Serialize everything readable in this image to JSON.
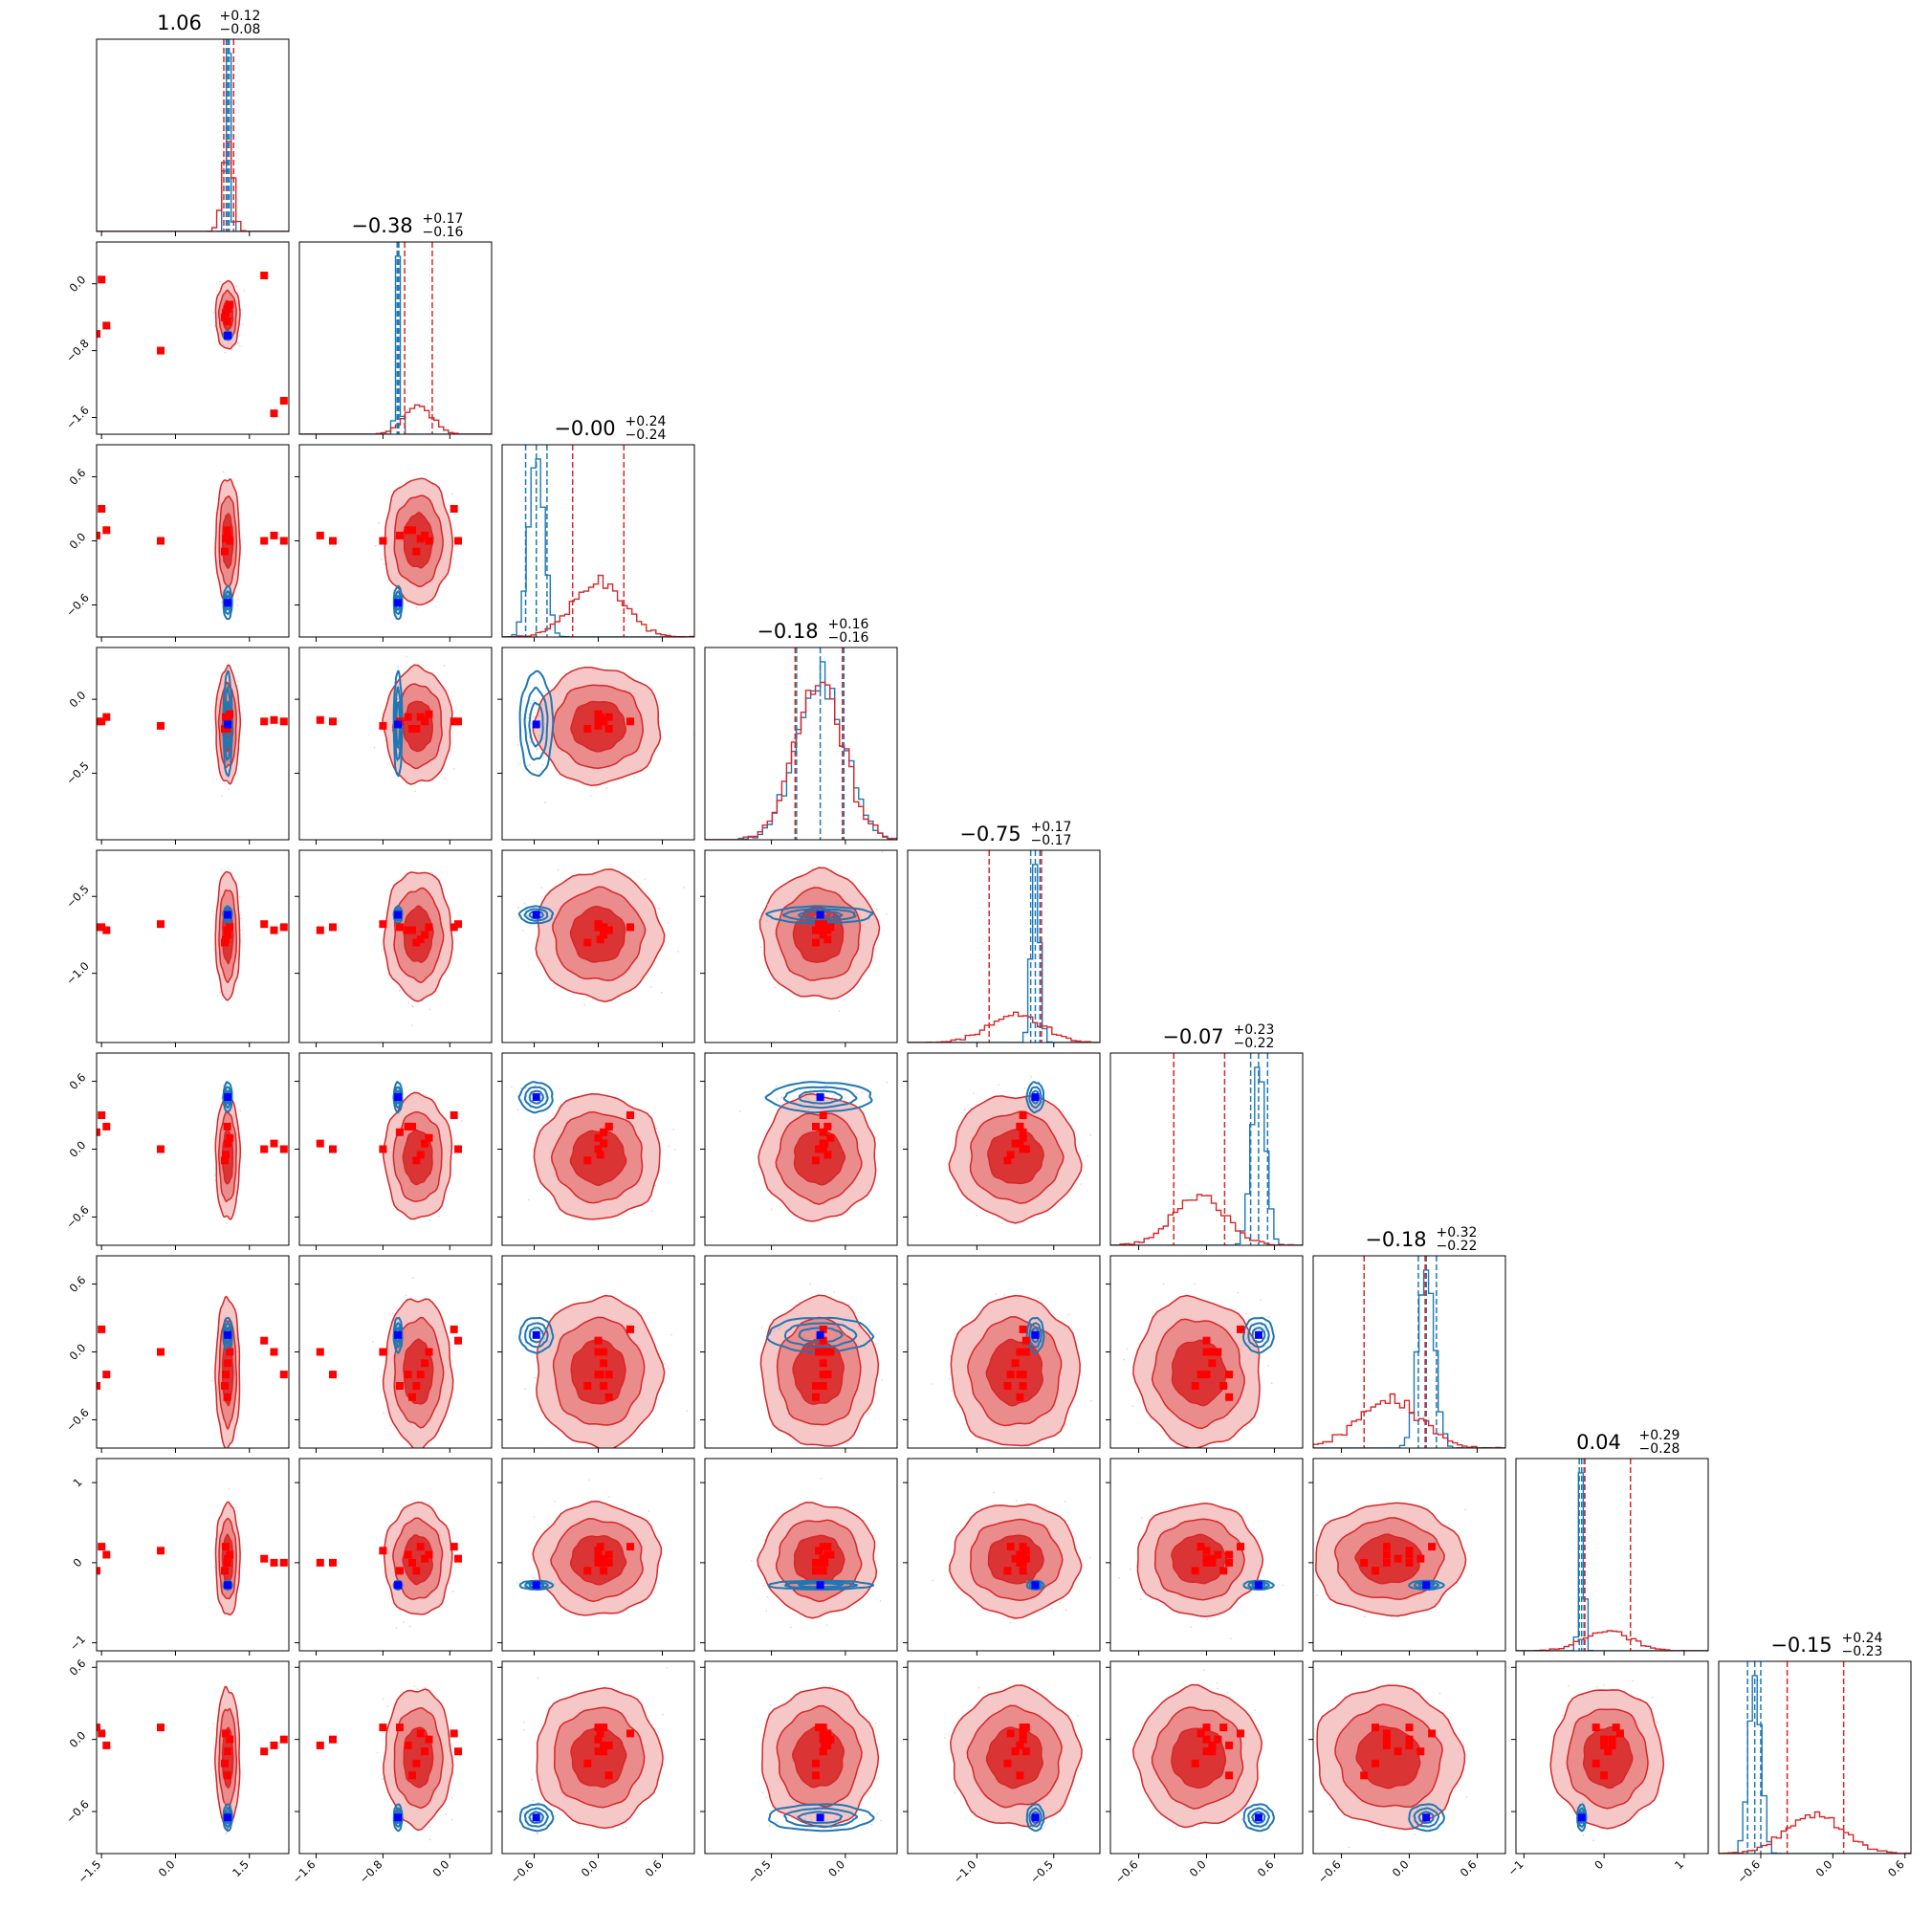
{
  "chart_data": {
    "type": "corner",
    "parameters": 9,
    "titles": [
      {
        "median": "1.06",
        "plus": "+0.12",
        "minus": "−0.08"
      },
      {
        "median": "−0.38",
        "plus": "+0.17",
        "minus": "−0.16"
      },
      {
        "median": "−0.00",
        "plus": "+0.24",
        "minus": "−0.24"
      },
      {
        "median": "−0.18",
        "plus": "+0.16",
        "minus": "−0.16"
      },
      {
        "median": "−0.75",
        "plus": "+0.17",
        "minus": "−0.17"
      },
      {
        "median": "−0.07",
        "plus": "+0.23",
        "minus": "−0.22"
      },
      {
        "median": "−0.18",
        "plus": "+0.32",
        "minus": "−0.22"
      },
      {
        "median": "0.04",
        "plus": "+0.29",
        "minus": "−0.28"
      },
      {
        "median": "−0.15",
        "plus": "+0.24",
        "minus": "−0.23"
      }
    ],
    "ranges": [
      [
        -1.6,
        2.3
      ],
      [
        -1.8,
        0.5
      ],
      [
        -0.9,
        0.9
      ],
      [
        -0.95,
        0.35
      ],
      [
        -1.45,
        -0.2
      ],
      [
        -0.85,
        0.85
      ],
      [
        -0.85,
        0.85
      ],
      [
        -1.1,
        1.3
      ],
      [
        -0.95,
        0.65
      ]
    ],
    "x_ticks": [
      {
        "values": [
          -1.5,
          0.0,
          1.5
        ],
        "labels": [
          "−1.5",
          "0.0",
          "1.5"
        ]
      },
      {
        "values": [
          -1.6,
          -0.8,
          0.0
        ],
        "labels": [
          "−1.6",
          "−0.8",
          "0.0"
        ]
      },
      {
        "values": [
          -0.6,
          0.0,
          0.6
        ],
        "labels": [
          "−0.6",
          "0.0",
          "0.6"
        ]
      },
      {
        "values": [
          -0.5,
          0.0
        ],
        "labels": [
          "−0.5",
          "0.0"
        ]
      },
      {
        "values": [
          -1.0,
          -0.5
        ],
        "labels": [
          "−1.0",
          "−0.5"
        ]
      },
      {
        "values": [
          -0.6,
          0.0,
          0.6
        ],
        "labels": [
          "−0.6",
          "0.0",
          "0.6"
        ]
      },
      {
        "values": [
          -0.6,
          0.0,
          0.6
        ],
        "labels": [
          "−0.6",
          "0.0",
          "0.6"
        ]
      },
      {
        "values": [
          -1,
          0,
          1
        ],
        "labels": [
          "−1",
          "0",
          "1"
        ]
      },
      {
        "values": [
          -0.6,
          0.0,
          0.6
        ],
        "labels": [
          "−0.6",
          "0.0",
          "0.6"
        ]
      }
    ],
    "y_ticks": [
      null,
      {
        "values": [
          -1.6,
          -0.8,
          0.0
        ],
        "labels": [
          "−1.6",
          "−0.8",
          "0.0"
        ]
      },
      {
        "values": [
          -0.6,
          0.0,
          0.6
        ],
        "labels": [
          "−0.6",
          "0.0",
          "0.6"
        ]
      },
      {
        "values": [
          -0.5,
          0.0
        ],
        "labels": [
          "−0.5",
          "0.0"
        ]
      },
      {
        "values": [
          -1.0,
          -0.5
        ],
        "labels": [
          "−1.0",
          "−0.5"
        ]
      },
      {
        "values": [
          -0.6,
          0.0,
          0.6
        ],
        "labels": [
          "−0.6",
          "0.0",
          "0.6"
        ]
      },
      {
        "values": [
          -0.6,
          0.0,
          0.6
        ],
        "labels": [
          "−0.6",
          "0.0",
          "0.6"
        ]
      },
      {
        "values": [
          -1,
          0,
          1
        ],
        "labels": [
          "−1",
          "0",
          "1"
        ]
      },
      {
        "values": [
          -0.6,
          0.0,
          0.6
        ],
        "labels": [
          "−0.6",
          "0.0",
          "0.6"
        ]
      }
    ],
    "posterior_red": {
      "color": "#d62728",
      "means": [
        1.06,
        -0.38,
        0.0,
        -0.18,
        -0.75,
        -0.07,
        -0.18,
        0.04,
        -0.15
      ],
      "sigmas": [
        0.1,
        0.165,
        0.24,
        0.16,
        0.17,
        0.225,
        0.27,
        0.285,
        0.235
      ],
      "quantile_lines": [
        [
          0.98,
          1.18
        ],
        [
          -0.54,
          -0.21
        ],
        [
          -0.24,
          0.24
        ],
        [
          -0.34,
          -0.02
        ],
        [
          -0.92,
          -0.58
        ],
        [
          -0.29,
          0.16
        ],
        [
          -0.4,
          0.14
        ],
        [
          -0.24,
          0.33
        ],
        [
          -0.38,
          0.09
        ]
      ]
    },
    "posterior_blue": {
      "color": "#1f77b4",
      "means": [
        1.06,
        -0.62,
        -0.58,
        -0.17,
        -0.62,
        0.46,
        0.15,
        -0.28,
        -0.65
      ],
      "sigmas": [
        0.04,
        0.02,
        0.07,
        0.16,
        0.025,
        0.06,
        0.07,
        0.025,
        0.05
      ],
      "quantile_lines": [
        [
          1.03,
          1.09
        ],
        [
          -0.63,
          -0.61
        ],
        [
          -0.68,
          -0.48
        ],
        [
          -0.33,
          -0.01
        ],
        [
          -0.65,
          -0.59
        ],
        [
          0.39,
          0.54
        ],
        [
          0.08,
          0.24
        ],
        [
          -0.31,
          -0.25
        ],
        [
          -0.71,
          -0.6
        ]
      ]
    },
    "truth_blue_points": [
      1.06,
      -0.62,
      -0.58,
      -0.17,
      -0.62,
      0.46,
      0.15,
      -0.28,
      -0.65
    ],
    "red_markers_description_values": {
      "param_samples": [
        [
          1.06,
          -0.3,
          0.05,
          -0.15,
          -0.75,
          0.05,
          -0.1,
          0.05,
          -0.1
        ],
        [
          1.1,
          -0.25,
          0.0,
          -0.1,
          -0.7,
          0.1,
          0.0,
          0.1,
          0.0
        ],
        [
          1.0,
          -0.4,
          -0.1,
          -0.2,
          -0.8,
          -0.1,
          -0.3,
          -0.1,
          -0.2
        ],
        [
          1.05,
          -0.45,
          0.1,
          -0.2,
          -0.72,
          0.2,
          -0.4,
          0.0,
          -0.3
        ],
        [
          1.02,
          -0.35,
          0.02,
          -0.12,
          -0.78,
          -0.05,
          -0.2,
          0.2,
          0.05
        ],
        [
          -1.5,
          0.05,
          0.3,
          -0.15,
          -0.7,
          0.3,
          0.2,
          0.2,
          0.05
        ],
        [
          -1.4,
          -0.5,
          0.1,
          -0.12,
          -0.72,
          0.2,
          -0.2,
          0.1,
          -0.05
        ],
        [
          -1.6,
          -0.6,
          0.05,
          -0.15,
          -0.7,
          0.15,
          -0.3,
          -0.1,
          0.1
        ],
        [
          -0.3,
          -0.8,
          0.0,
          -0.18,
          -0.68,
          0.0,
          0.0,
          0.15,
          0.1
        ],
        [
          2.2,
          -1.4,
          0.0,
          -0.15,
          -0.7,
          0.0,
          -0.2,
          0.0,
          0.0
        ],
        [
          1.8,
          0.1,
          0.0,
          -0.15,
          -0.68,
          0.0,
          0.1,
          0.05,
          -0.1
        ],
        [
          2.0,
          -1.55,
          0.05,
          -0.14,
          -0.72,
          0.05,
          0.0,
          0.0,
          -0.05
        ]
      ]
    }
  }
}
